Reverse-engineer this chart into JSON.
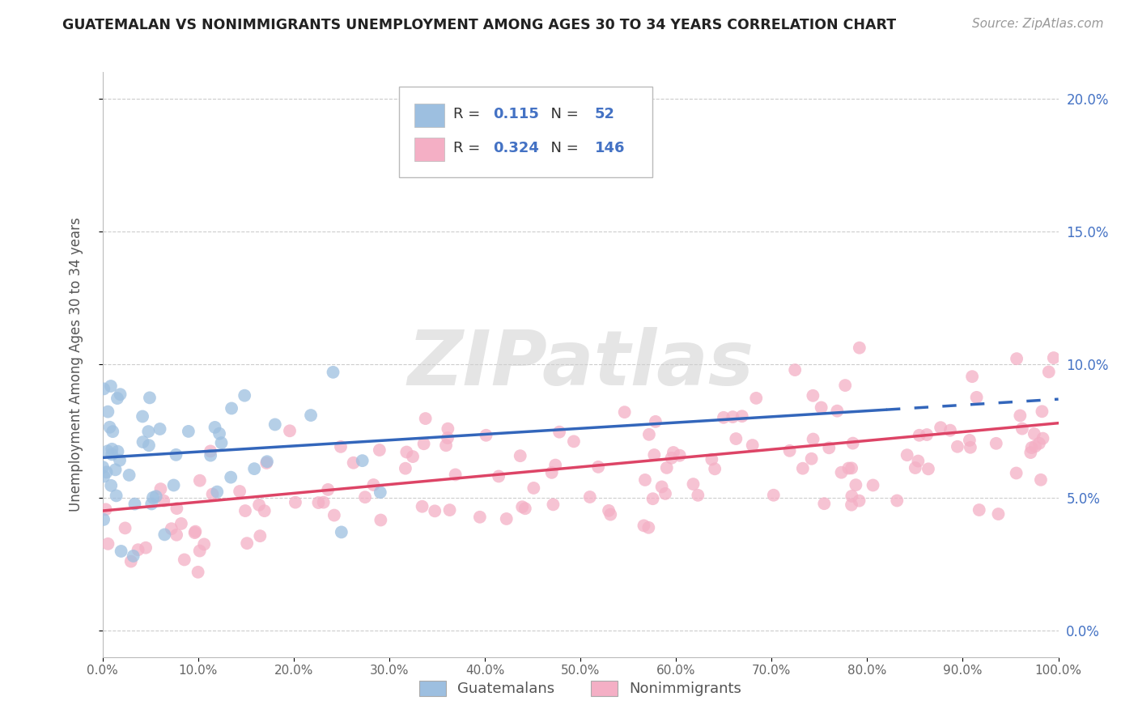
{
  "title": "GUATEMALAN VS NONIMMIGRANTS UNEMPLOYMENT AMONG AGES 30 TO 34 YEARS CORRELATION CHART",
  "source": "Source: ZipAtlas.com",
  "ylabel": "Unemployment Among Ages 30 to 34 years",
  "xlim": [
    0,
    100
  ],
  "ylim": [
    -1,
    21
  ],
  "guatemalan_R": 0.115,
  "guatemalan_N": 52,
  "nonimmigrant_R": 0.324,
  "nonimmigrant_N": 146,
  "guatemalan_color": "#9dbfe0",
  "nonimmigrant_color": "#f4afc5",
  "guatemalan_line_color": "#3366bb",
  "nonimmigrant_line_color": "#dd4466",
  "right_axis_color": "#4472c4",
  "guat_line_x0": 0,
  "guat_line_y0": 6.5,
  "guat_line_x1": 100,
  "guat_line_y1": 8.7,
  "guat_dashed_start_x": 82,
  "nonimm_line_x0": 0,
  "nonimm_line_y0": 4.5,
  "nonimm_line_x1": 100,
  "nonimm_line_y1": 7.8,
  "yticks": [
    0,
    5,
    10,
    15,
    20
  ],
  "xticks": [
    0,
    10,
    20,
    30,
    40,
    50,
    60,
    70,
    80,
    90,
    100
  ]
}
